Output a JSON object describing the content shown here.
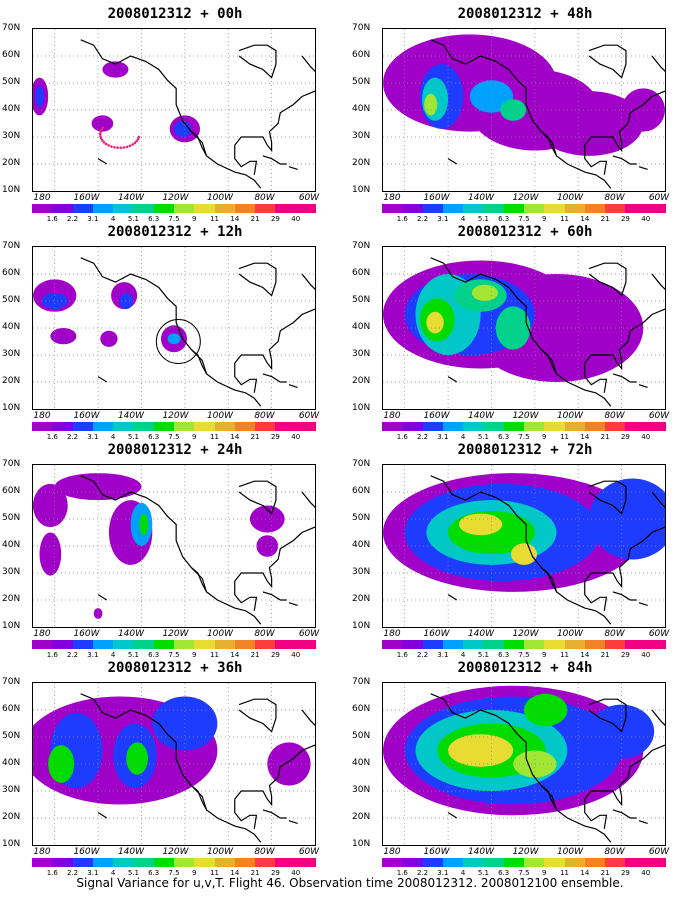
{
  "panels": [
    {
      "title": "2008012312 + 00h"
    },
    {
      "title": "2008012312 + 48h"
    },
    {
      "title": "2008012312 + 12h"
    },
    {
      "title": "2008012312 + 60h"
    },
    {
      "title": "2008012312 + 24h"
    },
    {
      "title": "2008012312 + 72h"
    },
    {
      "title": "2008012312 + 36h"
    },
    {
      "title": "2008012312 + 84h"
    }
  ],
  "axes": {
    "y_ticks": [
      "70N",
      "60N",
      "50N",
      "40N",
      "30N",
      "20N",
      "10N"
    ],
    "x_ticks": [
      "180",
      "160W",
      "140W",
      "120W",
      "100W",
      "80W",
      "60W"
    ]
  },
  "colorbar": {
    "labels": [
      "1.6",
      "2.2",
      "3.1",
      "4",
      "5.1",
      "6.3",
      "7.5",
      "9",
      "11",
      "14",
      "21",
      "29",
      "40"
    ],
    "colors": [
      "#a000c8",
      "#8200dc",
      "#1e3cff",
      "#00a0ff",
      "#00c8c8",
      "#00d28c",
      "#00dc00",
      "#a0e632",
      "#e6dc32",
      "#e6af2d",
      "#f08228",
      "#fa3c3c",
      "#f00082"
    ]
  },
  "caption": "Signal Variance for u,v,T. Flight 46. Observation time 2008012312. 2008012100 ensemble."
}
